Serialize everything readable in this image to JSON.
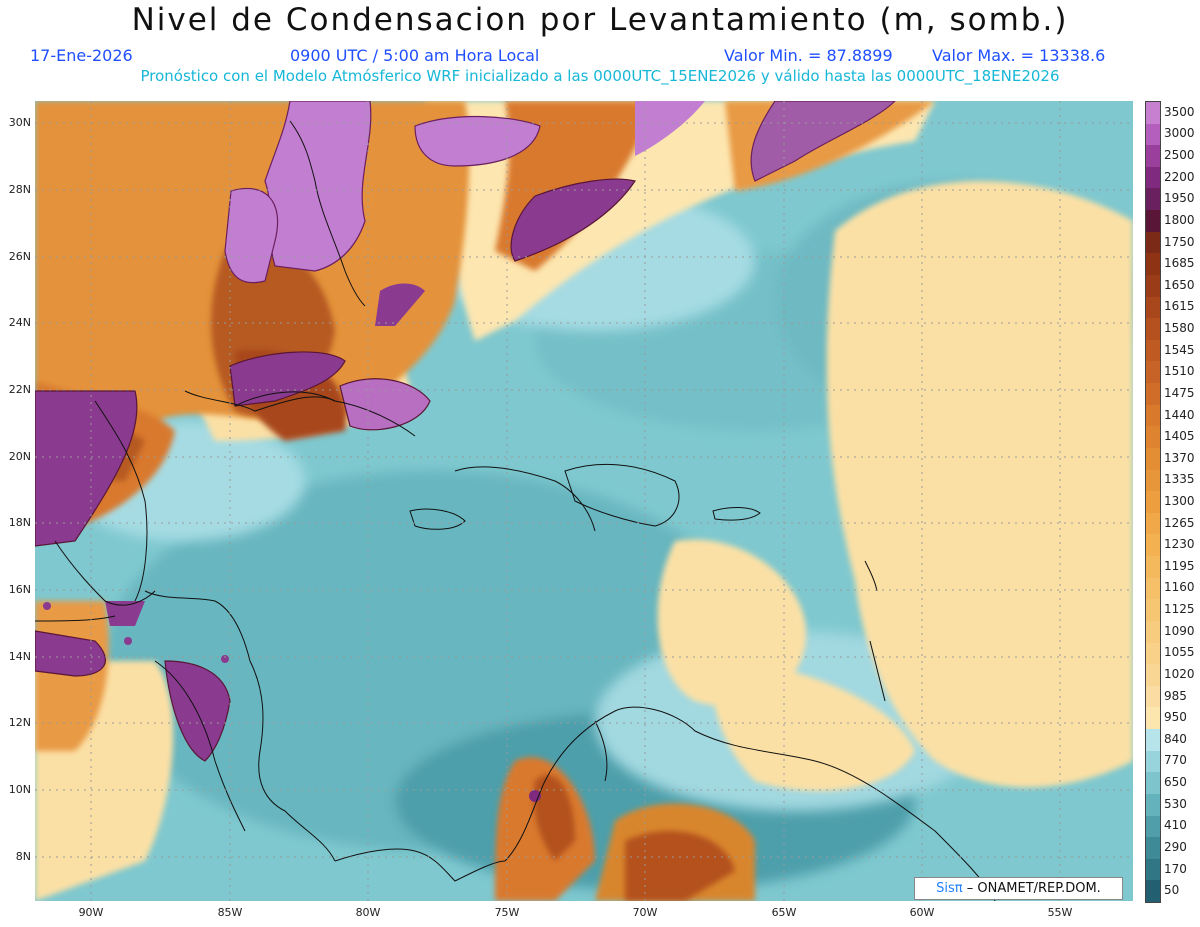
{
  "header": {
    "title": "Nivel de Condensacion por Levantamiento (m, somb.)",
    "date": "17-Ene-2026",
    "time": "0900 UTC / 5:00 am Hora Local",
    "valor_min": "Valor Min. = 87.8899",
    "valor_max": "Valor Max. = 13338.6",
    "model_info": "Pronóstico con el Modelo Atmósferico WRF inicializado a las 0000UTC_15ENE2026 y válido hasta las  0000UTC_18ENE2026"
  },
  "map": {
    "lat_labels": [
      "30N",
      "28N",
      "26N",
      "24N",
      "22N",
      "20N",
      "18N",
      "16N",
      "14N",
      "12N",
      "10N",
      "8N"
    ],
    "lon_labels": [
      "90W",
      "85W",
      "80W",
      "75W",
      "70W",
      "65W",
      "60W",
      "55W"
    ]
  },
  "colorbar": {
    "levels": [
      "3500",
      "3000",
      "2500",
      "2200",
      "1950",
      "1800",
      "1750",
      "1685",
      "1650",
      "1615",
      "1580",
      "1545",
      "1510",
      "1475",
      "1440",
      "1405",
      "1370",
      "1335",
      "1300",
      "1265",
      "1230",
      "1195",
      "1160",
      "1125",
      "1090",
      "1055",
      "1020",
      "985",
      "950",
      "840",
      "770",
      "650",
      "530",
      "410",
      "290",
      "170",
      "50"
    ],
    "colors": [
      "#c77fd0",
      "#b45fbe",
      "#9a3f9c",
      "#7f2a7e",
      "#6a1f5f",
      "#5a1636",
      "#7a2a16",
      "#8e3415",
      "#9b3c18",
      "#a8461c",
      "#b4511f",
      "#bf5b22",
      "#c76326",
      "#d06e29",
      "#d8792c",
      "#de832f",
      "#e38d34",
      "#e8963a",
      "#ed9f40",
      "#f1a848",
      "#f3b152",
      "#f5b95d",
      "#f6c068",
      "#f7c673",
      "#f8cc7e",
      "#f9d189",
      "#fad695",
      "#fbdca2",
      "#fde6ae",
      "#b7e3ea",
      "#98d4dc",
      "#7ec4cc",
      "#63b2bc",
      "#4f9eaa",
      "#3f8a97",
      "#317685",
      "#225f70"
    ]
  },
  "credit": {
    "logo": "Sisπ",
    "text": "– ONAMET/REP.DOM."
  }
}
